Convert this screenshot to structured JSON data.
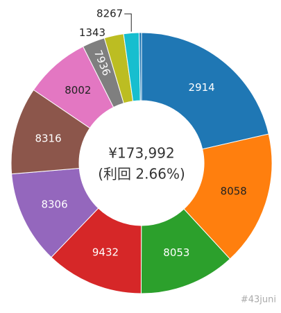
{
  "chart_data": {
    "type": "pie",
    "center_text": [
      "¥173,992",
      "(利回 2.66%)"
    ],
    "watermark": "#43juni",
    "categories": [
      "2914",
      "8058",
      "8053",
      "9432",
      "8306",
      "8316",
      "8002",
      "7936",
      "1343",
      "8267",
      null
    ],
    "values": [
      21.4,
      16.7,
      11.9,
      12.1,
      11.5,
      10.8,
      8.1,
      2.8,
      2.4,
      1.9,
      0.3
    ],
    "colors": [
      "#1f77b4",
      "#ff7f0e",
      "#2ca02c",
      "#d62728",
      "#9467bd",
      "#8c564b",
      "#e377c2",
      "#7f7f7f",
      "#bcbd22",
      "#17becf",
      "#1f77b4"
    ]
  }
}
